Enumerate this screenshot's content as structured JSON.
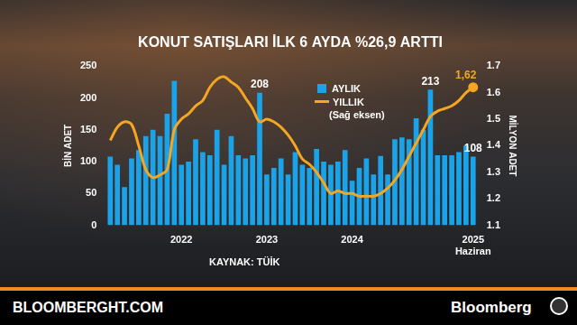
{
  "chart_data": {
    "type": "bar",
    "title": "KONUT SATIŞLARI İLK 6 AYDA %26,9 ARTTI",
    "y_label": "BİN ADET",
    "y2_label": "MİLYON ADET",
    "source": "KAYNAK: TÜİK",
    "categories": [
      null,
      null,
      null,
      null,
      null,
      null,
      null,
      null,
      null,
      null,
      "2022",
      null,
      null,
      null,
      null,
      null,
      null,
      null,
      null,
      null,
      null,
      null,
      "2023",
      null,
      null,
      null,
      null,
      null,
      null,
      null,
      null,
      null,
      null,
      null,
      "2024",
      null,
      null,
      null,
      null,
      null,
      null,
      null,
      null,
      null,
      null,
      null,
      null,
      null,
      null,
      null,
      null,
      "2025 Haziran"
    ],
    "series": [
      {
        "name": "AYLIK",
        "type": "bar",
        "color": "#1aa3e8",
        "values": [
          108,
          95,
          60,
          105,
          118,
          140,
          150,
          140,
          175,
          227,
          95,
          100,
          135,
          115,
          110,
          150,
          95,
          140,
          110,
          105,
          110,
          208,
          80,
          90,
          105,
          80,
          115,
          95,
          90,
          120,
          100,
          95,
          100,
          118,
          70,
          90,
          105,
          80,
          109,
          80,
          135,
          138,
          135,
          168,
          150,
          213,
          110,
          110,
          110,
          115,
          125,
          108
        ],
        "value_labels": [
          null,
          null,
          null,
          null,
          null,
          null,
          null,
          null,
          null,
          null,
          null,
          null,
          null,
          null,
          null,
          null,
          null,
          null,
          null,
          null,
          null,
          "208",
          null,
          null,
          null,
          null,
          null,
          null,
          null,
          null,
          null,
          null,
          null,
          null,
          null,
          null,
          null,
          null,
          null,
          null,
          null,
          null,
          null,
          null,
          null,
          "213",
          null,
          null,
          null,
          null,
          null,
          "108"
        ]
      },
      {
        "name": "YILLIK",
        "note": "(Sağ eksen)",
        "type": "line",
        "axis": "y2",
        "color": "#f5a623",
        "marker": "circle",
        "values": [
          1.42,
          1.47,
          1.49,
          1.48,
          1.4,
          1.31,
          1.28,
          1.29,
          1.31,
          1.46,
          1.5,
          1.52,
          1.55,
          1.57,
          1.62,
          1.65,
          1.66,
          1.64,
          1.62,
          1.58,
          1.54,
          1.49,
          1.5,
          1.49,
          1.47,
          1.44,
          1.4,
          1.35,
          1.33,
          1.3,
          1.26,
          1.22,
          1.23,
          1.22,
          1.22,
          1.21,
          1.21,
          1.21,
          1.22,
          1.24,
          1.27,
          1.31,
          1.36,
          1.41,
          1.46,
          1.51,
          1.53,
          1.54,
          1.55,
          1.57,
          1.6,
          1.62
        ],
        "value_labels": [
          null,
          null,
          null,
          null,
          null,
          null,
          null,
          null,
          null,
          null,
          null,
          null,
          null,
          null,
          null,
          null,
          null,
          null,
          null,
          null,
          null,
          null,
          null,
          null,
          null,
          null,
          null,
          null,
          null,
          null,
          null,
          null,
          null,
          null,
          null,
          null,
          null,
          null,
          null,
          null,
          null,
          null,
          null,
          null,
          null,
          null,
          null,
          null,
          null,
          null,
          null,
          "1,62"
        ]
      }
    ],
    "ylim": [
      0,
      250
    ],
    "yticks": [
      0,
      50,
      100,
      150,
      200,
      250
    ],
    "y2lim": [
      1.1,
      1.7
    ],
    "y2ticks": [
      1.1,
      1.2,
      1.3,
      1.4,
      1.5,
      1.6,
      1.7
    ],
    "grid": false,
    "legend": "top"
  },
  "footer": {
    "site": "BLOOMBERGHT.COM",
    "brand": "Bloomberg"
  }
}
